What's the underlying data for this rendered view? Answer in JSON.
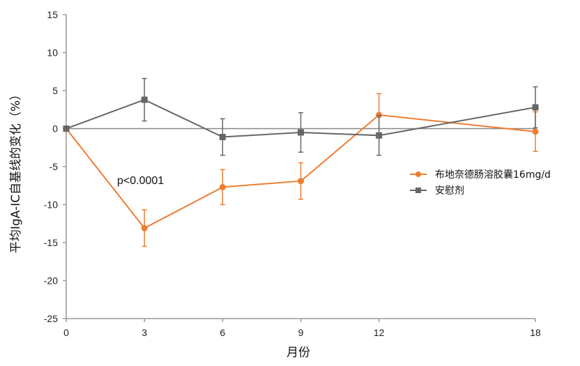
{
  "chart_data": {
    "type": "line",
    "xlabel": "月份",
    "ylabel": "平均IgA-IC自基线的变化（%）",
    "x": [
      0,
      3,
      6,
      9,
      12,
      18
    ],
    "x_ticks": [
      "0",
      "3",
      "6",
      "9",
      "12",
      "18"
    ],
    "xlim": [
      0,
      18
    ],
    "ylim": [
      -25,
      15
    ],
    "y_ticks": [
      "15",
      "10",
      "5",
      "0",
      "-5",
      "-10",
      "-15",
      "-20",
      "-25"
    ],
    "grid": false,
    "zero_reference_line": true,
    "legend_position": "right",
    "annotation": "p<0.0001",
    "series": [
      {
        "name": "布地奈德肠溶胶囊16mg/d",
        "color": "#ed7d31",
        "marker": "circle",
        "values": [
          0,
          -13.1,
          -7.7,
          -6.9,
          1.8,
          -0.4
        ],
        "error": [
          0,
          2.4,
          2.3,
          2.4,
          2.8,
          2.6
        ]
      },
      {
        "name": "安慰剂",
        "color": "#666666",
        "marker": "square",
        "values": [
          0,
          3.8,
          -1.1,
          -0.5,
          -0.9,
          2.8
        ],
        "error": [
          0,
          2.8,
          2.4,
          2.6,
          2.6,
          2.7
        ]
      }
    ]
  }
}
